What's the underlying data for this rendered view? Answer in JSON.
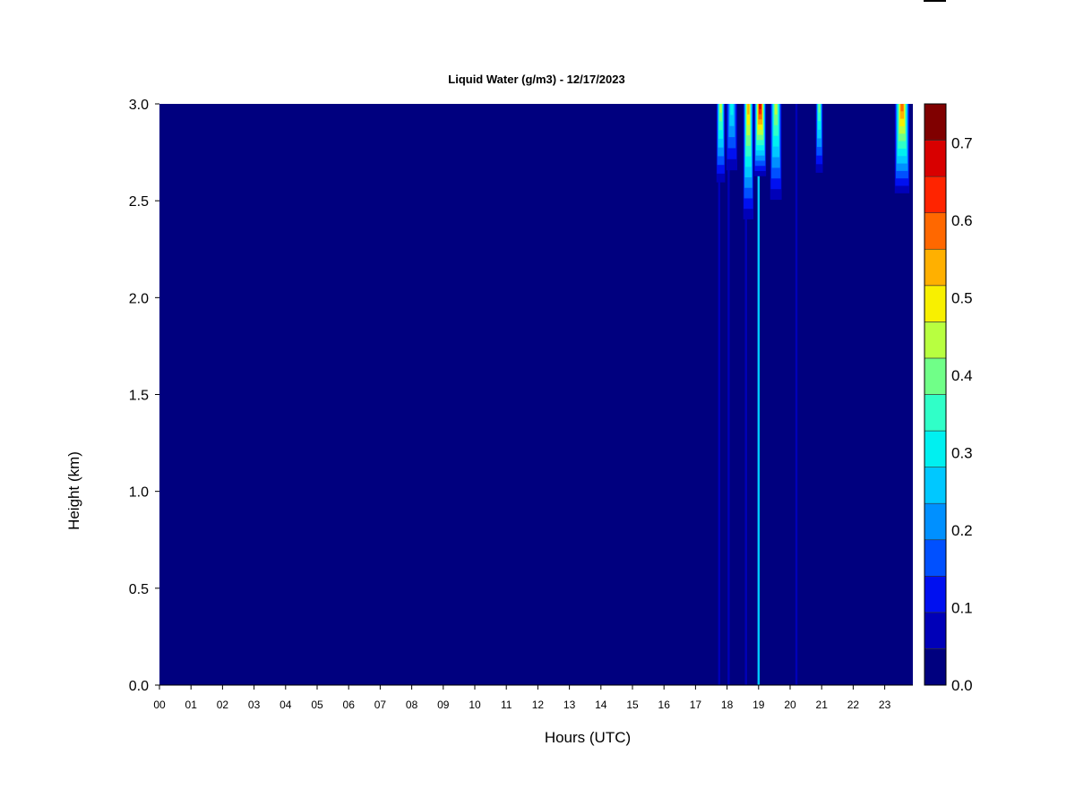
{
  "chart_data": {
    "type": "heatmap",
    "title": "Liquid Water (g/m3) - 12/17/2023",
    "xlabel": "Hours (UTC)",
    "ylabel": "Height (km)",
    "xlim": [
      0,
      24
    ],
    "ylim": [
      0,
      3.0
    ],
    "x_ticks": [
      "00",
      "01",
      "02",
      "03",
      "04",
      "05",
      "06",
      "07",
      "08",
      "09",
      "10",
      "11",
      "12",
      "13",
      "14",
      "15",
      "16",
      "17",
      "18",
      "19",
      "20",
      "21",
      "22",
      "23"
    ],
    "y_ticks": [
      "0.0",
      "0.5",
      "1.0",
      "1.5",
      "2.0",
      "2.5",
      "3.0"
    ],
    "colorbar": {
      "min": 0.0,
      "max": 0.75,
      "levels": [
        0.0,
        0.05,
        0.1,
        0.15,
        0.2,
        0.25,
        0.3,
        0.35,
        0.4,
        0.45,
        0.5,
        0.55,
        0.6,
        0.65,
        0.7,
        0.75
      ],
      "colors": [
        "#00007f",
        "#0000b8",
        "#0010f0",
        "#0050ff",
        "#0090ff",
        "#00c8ff",
        "#00f0f0",
        "#30ffc8",
        "#70ff88",
        "#b8ff40",
        "#f8f000",
        "#ffb000",
        "#ff6800",
        "#ff2400",
        "#d80000",
        "#800000"
      ],
      "labels": [
        "0.0",
        "0.1",
        "0.2",
        "0.3",
        "0.4",
        "0.5",
        "0.6",
        "0.7"
      ]
    },
    "background_value": 0.0,
    "features": [
      {
        "hour_start": 17.65,
        "hour_end": 17.95,
        "height_bottom": 2.55,
        "height_top": 3.0,
        "peak": 0.45
      },
      {
        "hour_start": 17.95,
        "hour_end": 18.35,
        "height_bottom": 2.6,
        "height_top": 3.0,
        "peak": 0.3
      },
      {
        "hour_start": 18.5,
        "hour_end": 18.85,
        "height_bottom": 2.35,
        "height_top": 3.0,
        "peak": 0.55
      },
      {
        "hour_start": 18.85,
        "hour_end": 19.25,
        "height_bottom": 2.6,
        "height_top": 3.0,
        "peak": 0.72
      },
      {
        "hour_start": 19.35,
        "hour_end": 19.75,
        "height_bottom": 2.45,
        "height_top": 3.0,
        "peak": 0.45
      },
      {
        "hour_start": 20.8,
        "hour_end": 21.05,
        "height_bottom": 2.6,
        "height_top": 3.0,
        "peak": 0.4
      },
      {
        "hour_start": 23.3,
        "hour_end": 23.8,
        "height_bottom": 2.5,
        "height_top": 3.0,
        "peak": 0.6
      }
    ],
    "vertical_streaks": [
      {
        "hour": 17.75,
        "height_top": 3.0,
        "value": 0.05
      },
      {
        "hour": 18.05,
        "height_top": 3.0,
        "value": 0.07
      },
      {
        "hour": 18.6,
        "height_top": 3.0,
        "value": 0.08
      },
      {
        "hour": 19.0,
        "height_top": 3.0,
        "value": 0.25
      },
      {
        "hour": 20.2,
        "height_top": 3.0,
        "value": 0.08
      }
    ]
  }
}
